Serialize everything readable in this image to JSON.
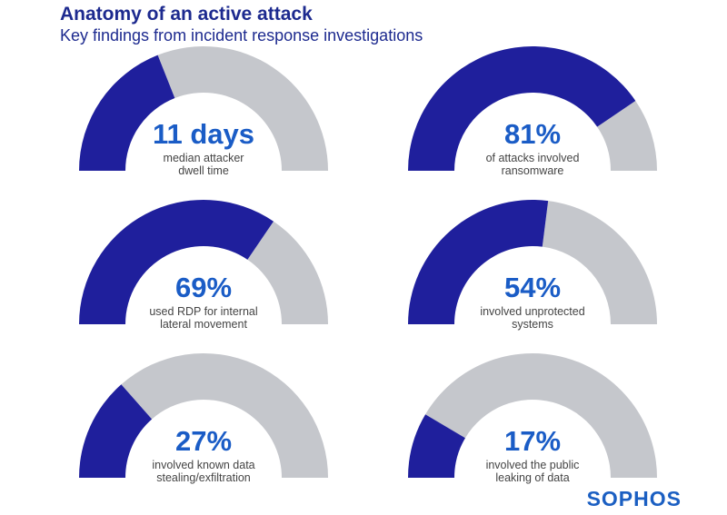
{
  "title": "Anatomy of an active attack",
  "subtitle": "Key findings from incident response investigations",
  "logo": "SOPHOS",
  "colors": {
    "fill": "#1f1f9c",
    "track": "#c5c7cc",
    "value": "#1a5cc6",
    "title": "#1d2a8f"
  },
  "chart_data": {
    "type": "gauge",
    "title": "Anatomy of an active attack",
    "items": [
      {
        "value_label": "11 days",
        "label_lines": [
          "median attacker",
          "dwell time"
        ],
        "fraction": 0.38
      },
      {
        "value_label": "81%",
        "label_lines": [
          "of attacks involved",
          "ransomware"
        ],
        "fraction": 0.81
      },
      {
        "value_label": "69%",
        "label_lines": [
          "used RDP for internal",
          "lateral movement"
        ],
        "fraction": 0.69
      },
      {
        "value_label": "54%",
        "label_lines": [
          "involved unprotected",
          "systems"
        ],
        "fraction": 0.54
      },
      {
        "value_label": "27%",
        "label_lines": [
          "involved known data",
          "stealing/exfiltration"
        ],
        "fraction": 0.27
      },
      {
        "value_label": "17%",
        "label_lines": [
          "involved the public",
          "leaking of data"
        ],
        "fraction": 0.17
      }
    ]
  }
}
